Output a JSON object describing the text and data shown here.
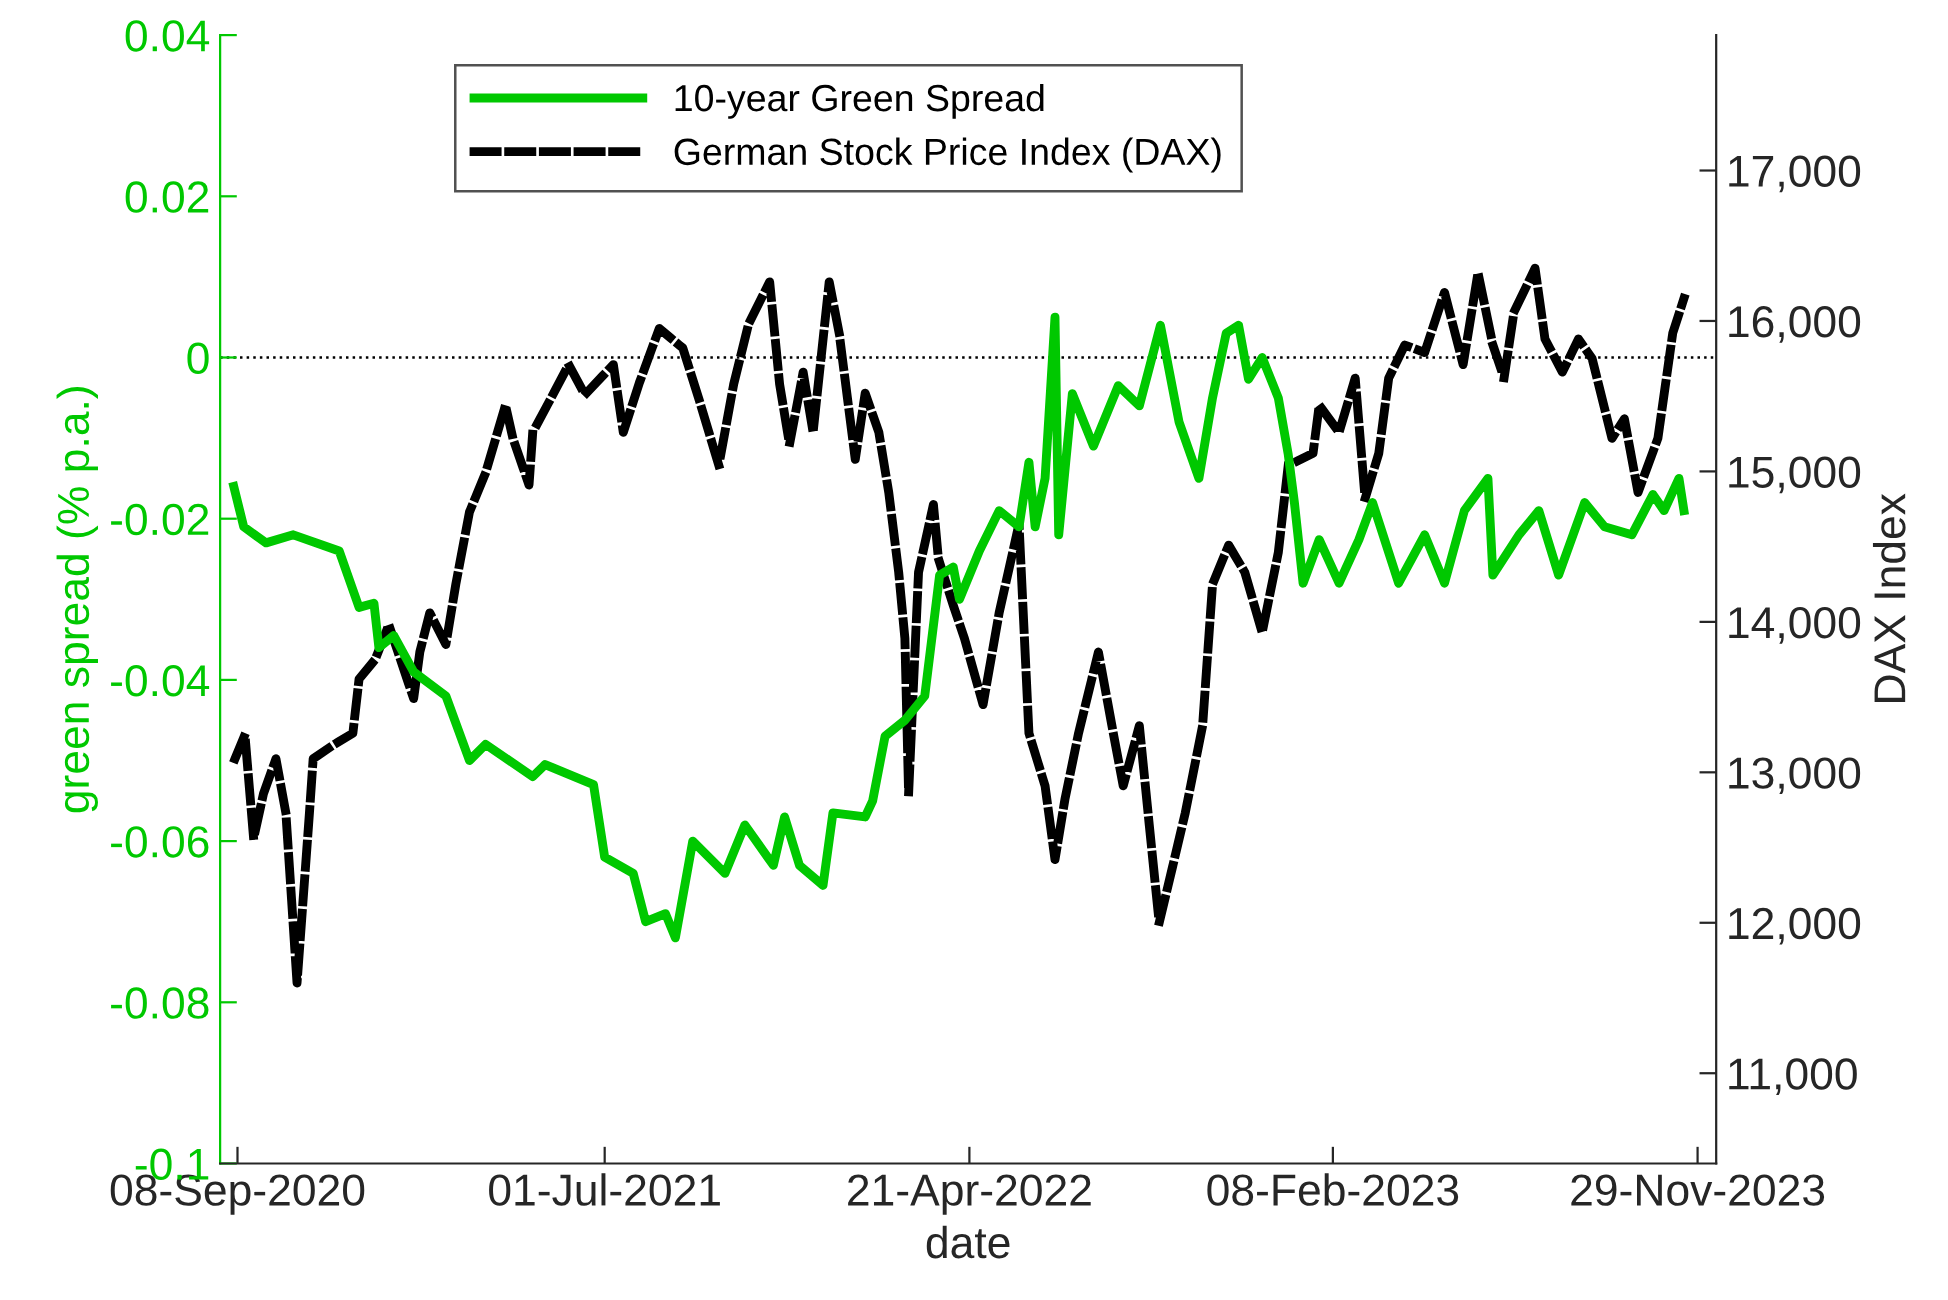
{
  "chart_data": {
    "type": "line",
    "xlabel": "date",
    "ylabel": "green spread (% p.a.)",
    "y2label": "DAX Index",
    "xlim": [
      "2020-08-25",
      "2023-12-14"
    ],
    "xticks": [
      {
        "value": "2020-09-08",
        "label": "08-Sep-2020"
      },
      {
        "value": "2021-07-01",
        "label": "01-Jul-2021"
      },
      {
        "value": "2022-04-21",
        "label": "21-Apr-2022"
      },
      {
        "value": "2023-02-08",
        "label": "08-Feb-2023"
      },
      {
        "value": "2023-11-29",
        "label": "29-Nov-2023"
      }
    ],
    "ylim": [
      -0.1,
      0.04
    ],
    "yticks": [
      -0.1,
      -0.08,
      -0.06,
      -0.04,
      -0.02,
      0,
      0.02,
      0.04
    ],
    "y2lim": [
      10400,
      17900
    ],
    "y2ticks": [
      {
        "value": 11000,
        "label": "11,000"
      },
      {
        "value": 12000,
        "label": "12,000"
      },
      {
        "value": 13000,
        "label": "13,000"
      },
      {
        "value": 14000,
        "label": "14,000"
      },
      {
        "value": 15000,
        "label": "15,000"
      },
      {
        "value": 16000,
        "label": "16,000"
      },
      {
        "value": 17000,
        "label": "17,000"
      }
    ],
    "ref_lines": [
      {
        "axis": "y",
        "value": 0,
        "color": "#000000",
        "line_style": "dotted"
      }
    ],
    "grid": false,
    "legend": "top",
    "marker": "none",
    "series": [
      {
        "name": "10-year Green Spread",
        "color": "#00c800",
        "line_style": "solid",
        "axis": "y",
        "x": [
          "2020-09-05",
          "2020-09-13",
          "2020-10-01",
          "2020-10-23",
          "2020-11-29",
          "2020-12-15",
          "2020-12-27",
          "2020-12-31",
          "2021-01-12",
          "2021-01-28",
          "2021-02-23",
          "2021-03-14",
          "2021-03-27",
          "2021-05-04",
          "2021-05-14",
          "2021-06-22",
          "2021-07-01",
          "2021-07-24",
          "2021-08-03",
          "2021-08-19",
          "2021-08-27",
          "2021-09-10",
          "2021-10-06",
          "2021-10-22",
          "2021-11-14",
          "2021-11-23",
          "2021-12-05",
          "2021-12-24",
          "2022-01-01",
          "2022-01-27",
          "2022-02-02",
          "2022-02-12",
          "2022-02-28",
          "2022-03-16",
          "2022-03-28",
          "2022-04-08",
          "2022-04-13",
          "2022-04-29",
          "2022-05-15",
          "2022-05-31",
          "2022-06-08",
          "2022-06-13",
          "2022-06-21",
          "2022-06-29",
          "2022-07-02",
          "2022-07-13",
          "2022-07-30",
          "2022-08-19",
          "2022-09-05",
          "2022-09-22",
          "2022-10-07",
          "2022-10-23",
          "2022-11-03",
          "2022-11-14",
          "2022-11-24",
          "2022-12-02",
          "2022-12-13",
          "2022-12-26",
          "2023-01-03",
          "2023-01-08",
          "2023-01-15",
          "2023-01-28",
          "2023-02-13",
          "2023-03-01",
          "2023-03-12",
          "2023-04-02",
          "2023-04-23",
          "2023-05-09",
          "2023-05-25",
          "2023-06-13",
          "2023-06-17",
          "2023-07-08",
          "2023-07-24",
          "2023-08-09",
          "2023-08-30",
          "2023-09-15",
          "2023-10-07",
          "2023-10-24",
          "2023-11-02",
          "2023-11-14",
          "2023-11-18"
        ],
        "values": [
          -0.016,
          -0.021,
          -0.023,
          -0.022,
          -0.024,
          -0.031,
          -0.0305,
          -0.036,
          -0.0345,
          -0.039,
          -0.042,
          -0.05,
          -0.048,
          -0.052,
          -0.0505,
          -0.053,
          -0.062,
          -0.064,
          -0.07,
          -0.069,
          -0.072,
          -0.06,
          -0.064,
          -0.058,
          -0.063,
          -0.057,
          -0.063,
          -0.0655,
          -0.0565,
          -0.057,
          -0.055,
          -0.047,
          -0.045,
          -0.042,
          -0.027,
          -0.026,
          -0.03,
          -0.024,
          -0.019,
          -0.021,
          -0.013,
          -0.021,
          -0.015,
          0.005,
          -0.022,
          -0.0045,
          -0.011,
          -0.0035,
          -0.006,
          0.004,
          -0.008,
          -0.015,
          -0.005,
          0.003,
          0.004,
          -0.0027,
          0,
          -0.005,
          -0.012,
          -0.018,
          -0.028,
          -0.0226,
          -0.028,
          -0.0226,
          -0.018,
          -0.028,
          -0.022,
          -0.028,
          -0.019,
          -0.015,
          -0.027,
          -0.022,
          -0.019,
          -0.027,
          -0.018,
          -0.021,
          -0.022,
          -0.017,
          -0.019,
          -0.015,
          -0.019
        ]
      },
      {
        "name": "German Stock Price Index (DAX)",
        "color": "#000000",
        "line_style": "dashed",
        "axis": "y2",
        "x": [
          "2020-09-06",
          "2020-09-14",
          "2020-09-21",
          "2020-09-29",
          "2020-10-09",
          "2020-10-17",
          "2020-10-26",
          "2020-11-05",
          "2020-11-08",
          "2020-11-24",
          "2020-12-10",
          "2020-12-15",
          "2020-12-28",
          "2021-01-08",
          "2021-01-28",
          "2021-02-02",
          "2021-02-10",
          "2021-02-23",
          "2021-03-03",
          "2021-03-14",
          "2021-03-27",
          "2021-04-12",
          "2021-04-18",
          "2021-05-01",
          "2021-05-04",
          "2021-05-17",
          "2021-06-02",
          "2021-06-15",
          "2021-07-08",
          "2021-07-16",
          "2021-07-29",
          "2021-08-14",
          "2021-09-02",
          "2021-09-15",
          "2021-10-01",
          "2021-10-13",
          "2021-10-25",
          "2021-11-11",
          "2021-11-19",
          "2021-11-27",
          "2021-12-08",
          "2021-12-16",
          "2021-12-29",
          "2022-01-06",
          "2022-01-19",
          "2022-01-27",
          "2022-02-07",
          "2022-02-15",
          "2022-02-23",
          "2022-02-28",
          "2022-03-03",
          "2022-03-11",
          "2022-03-23",
          "2022-03-27",
          "2022-04-01",
          "2022-04-08",
          "2022-04-17",
          "2022-05-02",
          "2022-05-15",
          "2022-05-31",
          "2022-06-08",
          "2022-06-21",
          "2022-06-29",
          "2022-07-07",
          "2022-07-18",
          "2022-08-03",
          "2022-08-15",
          "2022-08-23",
          "2022-09-05",
          "2022-09-13",
          "2022-09-21",
          "2022-10-02",
          "2022-10-12",
          "2022-10-26",
          "2022-11-03",
          "2022-11-16",
          "2022-11-29",
          "2022-12-13",
          "2022-12-26",
          "2023-01-03",
          "2023-01-23",
          "2023-01-28",
          "2023-02-13",
          "2023-02-26",
          "2023-03-06",
          "2023-03-17",
          "2023-03-25",
          "2023-04-07",
          "2023-04-23",
          "2023-05-09",
          "2023-05-24",
          "2023-06-05",
          "2023-06-17",
          "2023-06-26",
          "2023-07-04",
          "2023-07-21",
          "2023-07-29",
          "2023-08-12",
          "2023-08-25",
          "2023-09-05",
          "2023-09-21",
          "2023-10-01",
          "2023-10-12",
          "2023-10-28",
          "2023-11-09",
          "2023-11-18"
        ],
        "values": [
          13090,
          13250,
          12560,
          12860,
          13090,
          12730,
          11600,
          12730,
          13090,
          13180,
          13260,
          13620,
          13750,
          13980,
          13490,
          13800,
          14060,
          13850,
          14250,
          14730,
          14990,
          15440,
          15220,
          14910,
          15260,
          15460,
          15710,
          15510,
          15710,
          15260,
          15590,
          15950,
          15820,
          15480,
          15040,
          15580,
          15980,
          16260,
          15580,
          15180,
          15660,
          15260,
          16260,
          15920,
          15080,
          15520,
          15260,
          14860,
          14330,
          13890,
          12860,
          14330,
          14780,
          14420,
          14290,
          14110,
          13890,
          13450,
          14060,
          14650,
          13260,
          12910,
          12420,
          12820,
          13260,
          13800,
          13260,
          12910,
          13310,
          12650,
          12000,
          12380,
          12730,
          13310,
          14250,
          14510,
          14330,
          13930,
          14460,
          15040,
          15120,
          15440,
          15260,
          15620,
          14820,
          15120,
          15620,
          15840,
          15790,
          16190,
          15710,
          16320,
          15840,
          15620,
          16060,
          16350,
          15880,
          15660,
          15880,
          15750,
          15220,
          15350,
          14860,
          15220,
          15920,
          16150
        ]
      }
    ]
  }
}
